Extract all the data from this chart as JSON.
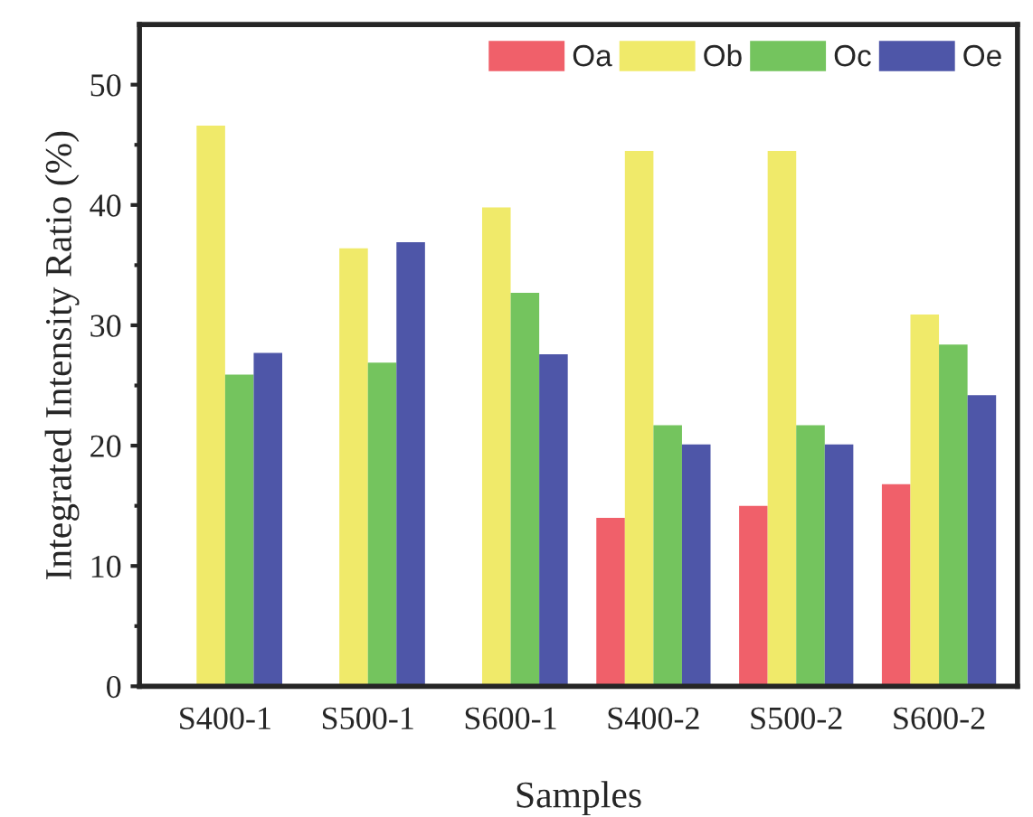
{
  "chart_data": {
    "type": "bar",
    "xlabel": "Samples",
    "ylabel": "Integrated Intensity Ratio (%)",
    "categories": [
      "S400-1",
      "S500-1",
      "S600-1",
      "S400-2",
      "S500-2",
      "S600-2"
    ],
    "series": [
      {
        "name": "Oa",
        "color": "#f0606a",
        "values": [
          null,
          null,
          null,
          14.0,
          15.0,
          16.8
        ]
      },
      {
        "name": "Ob",
        "color": "#f0ea6a",
        "values": [
          46.6,
          36.4,
          39.8,
          44.5,
          44.5,
          30.9
        ]
      },
      {
        "name": "Oc",
        "color": "#74c45e",
        "values": [
          25.9,
          26.9,
          32.7,
          21.7,
          21.7,
          28.4
        ]
      },
      {
        "name": "Oe",
        "color": "#4e56a8",
        "values": [
          27.7,
          36.9,
          27.6,
          20.1,
          20.1,
          24.2
        ]
      }
    ],
    "ylim": [
      0,
      55
    ],
    "yticks": [
      0,
      10,
      20,
      30,
      40,
      50
    ],
    "grid": false,
    "legend": "top right"
  }
}
